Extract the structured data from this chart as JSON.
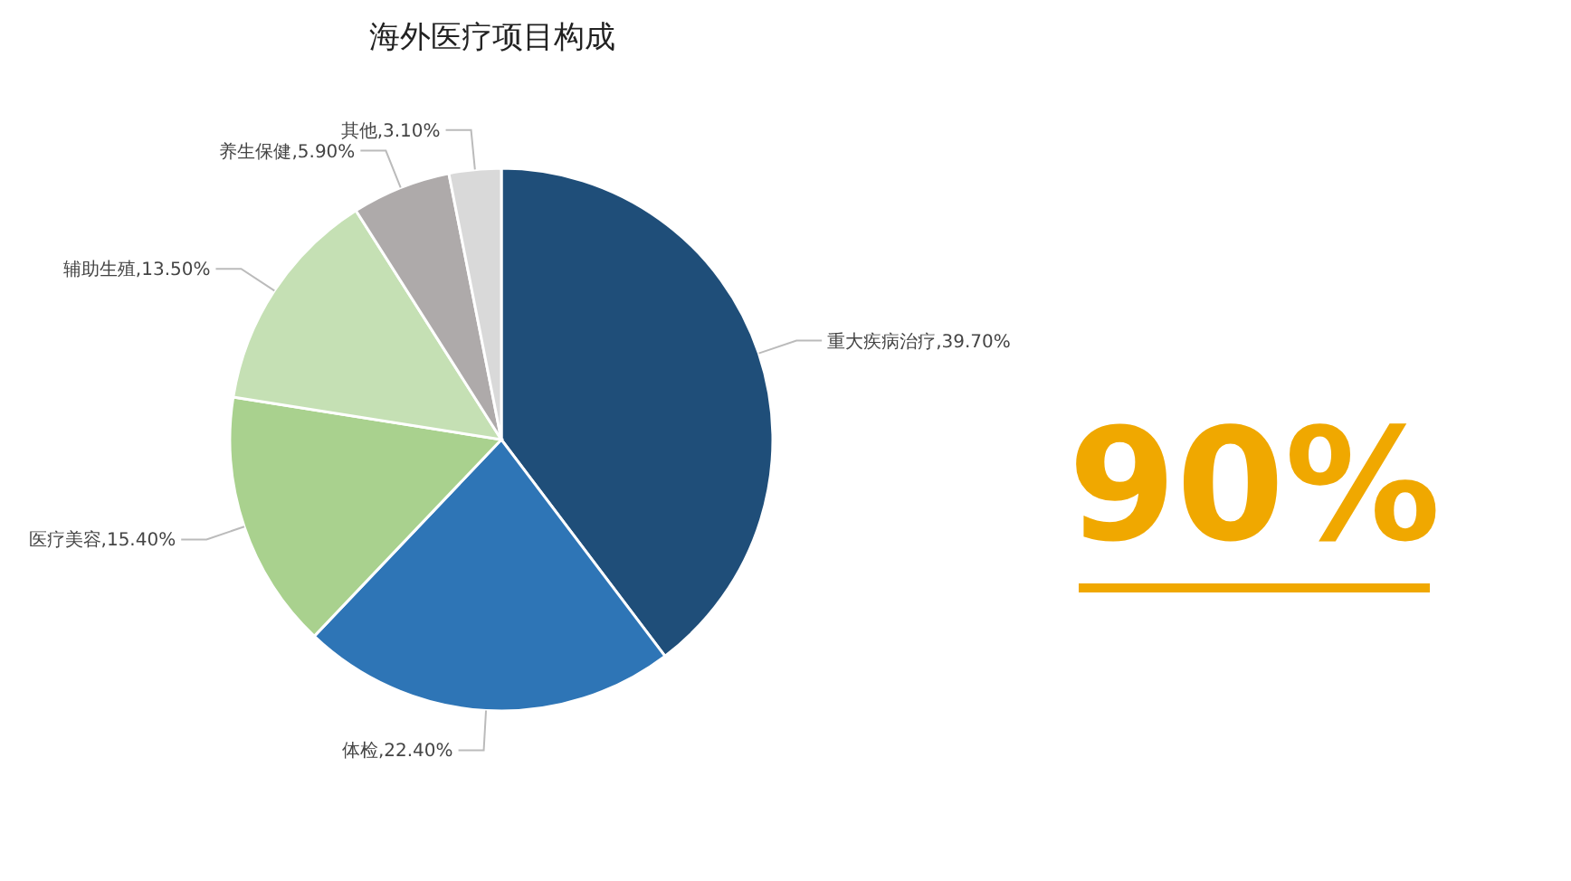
{
  "chart_data": {
    "type": "pie",
    "title": "海外医疗项目构成",
    "categories": [
      "重大疾病治疗",
      "体检",
      "医疗美容",
      "辅助生殖",
      "养生保健",
      "其他"
    ],
    "values": [
      39.7,
      22.4,
      15.4,
      13.5,
      5.9,
      3.1
    ],
    "value_labels": [
      "39.70%",
      "22.40%",
      "15.40%",
      "13.50%",
      "5.90%",
      "3.10%"
    ],
    "colors": [
      "#1f4e79",
      "#2e75b6",
      "#a9d18e",
      "#c5e0b4",
      "#aeaaaa",
      "#d9d9d9"
    ],
    "annotations": [
      "90%"
    ]
  }
}
